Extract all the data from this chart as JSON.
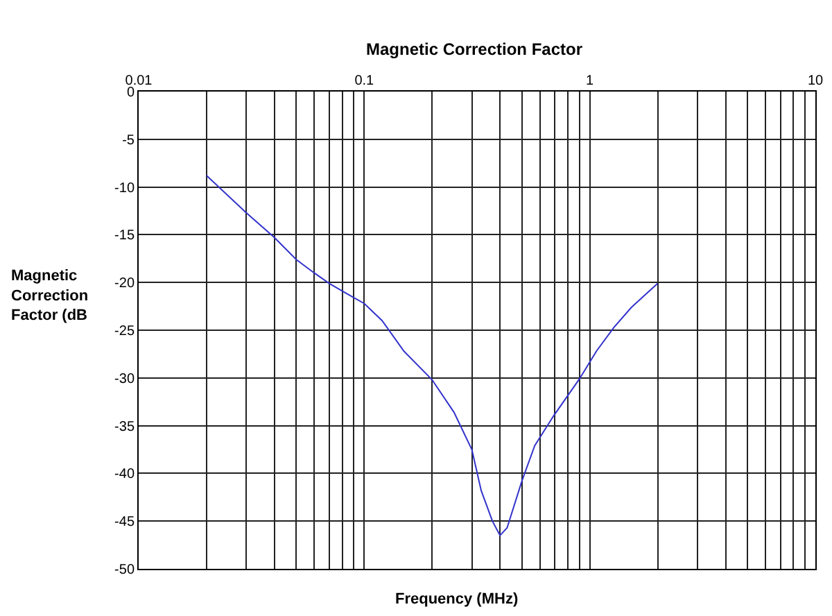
{
  "chart_data": {
    "type": "line",
    "title": "Magnetic Correction Factor",
    "xlabel": "Frequency (MHz)",
    "ylabel": "Magnetic Correction Factor (dB",
    "x": [
      0.02,
      0.03,
      0.04,
      0.05,
      0.06,
      0.07,
      0.08,
      0.09,
      0.1,
      0.12,
      0.15,
      0.2,
      0.25,
      0.3,
      0.33,
      0.37,
      0.4,
      0.43,
      0.5,
      0.57,
      0.69,
      0.9,
      1.07,
      1.28,
      1.53,
      2
    ],
    "series": [
      {
        "color": "#3333cc",
        "values": [
          -8.8,
          -12.7,
          -15.3,
          -17.6,
          -19.0,
          -20.1,
          -20.9,
          -21.6,
          -22.2,
          -24.0,
          -27.2,
          -30.2,
          -33.6,
          -37.5,
          -41.8,
          -45.0,
          -46.5,
          -45.7,
          -40.8,
          -37.1,
          -34.0,
          -30.1,
          -27.2,
          -24.7,
          -22.6,
          -20.1
        ]
      }
    ],
    "log": "x",
    "xlim": [
      0.01,
      10
    ],
    "ylim": [
      -50,
      0
    ],
    "xticks": [
      0.01,
      {
        "value": 0.02,
        "label": null
      },
      {
        "value": 0.03,
        "label": null
      },
      {
        "value": 0.04,
        "label": null
      },
      {
        "value": 0.05,
        "label": null
      },
      {
        "value": 0.06,
        "label": null
      },
      {
        "value": 0.07,
        "label": null
      },
      {
        "value": 0.08,
        "label": null
      },
      {
        "value": 0.09,
        "label": null
      },
      0.1,
      {
        "value": 0.2,
        "label": null
      },
      {
        "value": 0.3,
        "label": null
      },
      {
        "value": 0.4,
        "label": null
      },
      {
        "value": 0.5,
        "label": null
      },
      {
        "value": 0.6,
        "label": null
      },
      {
        "value": 0.7,
        "label": null
      },
      {
        "value": 0.8,
        "label": null
      },
      {
        "value": 0.9,
        "label": null
      },
      1,
      {
        "value": 2,
        "label": null
      },
      {
        "value": 3,
        "label": null
      },
      {
        "value": 4,
        "label": null
      },
      {
        "value": 5,
        "label": null
      },
      {
        "value": 6,
        "label": null
      },
      {
        "value": 7,
        "label": null
      },
      {
        "value": 8,
        "label": null
      },
      {
        "value": 9,
        "label": null
      },
      10
    ],
    "yticks": [
      0,
      -5,
      -10,
      -15,
      -20,
      -25,
      -30,
      -35,
      -40,
      -45,
      -50
    ],
    "grid": true,
    "marker": "none",
    "line_style": "solid"
  }
}
